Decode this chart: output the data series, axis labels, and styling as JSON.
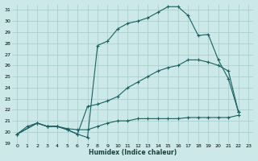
{
  "xlabel": "Humidex (Indice chaleur)",
  "bg_color": "#cce8e8",
  "grid_color": "#aad0d0",
  "line_color": "#1a6060",
  "xlim": [
    -0.5,
    23.5
  ],
  "ylim": [
    19,
    31.5
  ],
  "xticks": [
    0,
    1,
    2,
    3,
    4,
    5,
    6,
    7,
    8,
    9,
    10,
    11,
    12,
    13,
    14,
    15,
    16,
    17,
    18,
    19,
    20,
    21,
    22,
    23
  ],
  "yticks": [
    19,
    20,
    21,
    22,
    23,
    24,
    25,
    26,
    27,
    28,
    29,
    30,
    31
  ],
  "line1_x": [
    0,
    2,
    3,
    4,
    5,
    6,
    7,
    8,
    9,
    10,
    11,
    12,
    13,
    14,
    15,
    16,
    17,
    18,
    19,
    20,
    21,
    22
  ],
  "line1_y": [
    19.8,
    20.8,
    20.5,
    20.5,
    20.2,
    19.8,
    19.5,
    27.8,
    28.2,
    29.3,
    29.8,
    30.0,
    30.3,
    30.8,
    31.3,
    31.3,
    30.5,
    28.7,
    28.8,
    26.5,
    24.8,
    21.8
  ],
  "line2_x": [
    0,
    2,
    3,
    4,
    5,
    6,
    7,
    8,
    9,
    10,
    11,
    12,
    13,
    14,
    15,
    16,
    17,
    18,
    19,
    20,
    21,
    22
  ],
  "line2_y": [
    19.8,
    20.8,
    20.5,
    20.5,
    20.2,
    19.8,
    22.3,
    22.5,
    22.8,
    23.2,
    24.0,
    24.5,
    25.0,
    25.5,
    25.8,
    26.0,
    26.5,
    26.5,
    26.3,
    26.0,
    25.5,
    21.8
  ],
  "line3_x": [
    0,
    1,
    2,
    3,
    4,
    5,
    6,
    7,
    8,
    9,
    10,
    11,
    12,
    13,
    14,
    15,
    16,
    17,
    18,
    19,
    20,
    21,
    22
  ],
  "line3_y": [
    19.8,
    20.5,
    20.8,
    20.5,
    20.5,
    20.3,
    20.2,
    20.2,
    20.5,
    20.8,
    21.0,
    21.0,
    21.2,
    21.2,
    21.2,
    21.2,
    21.2,
    21.3,
    21.3,
    21.3,
    21.3,
    21.3,
    21.5
  ]
}
